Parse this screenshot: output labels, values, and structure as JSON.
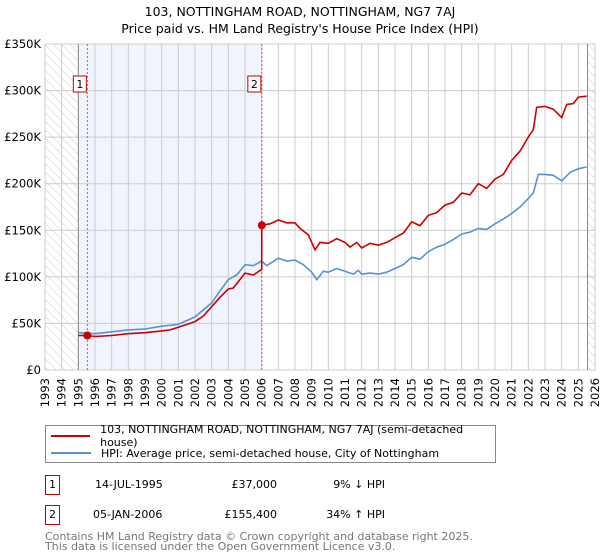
{
  "title": "103, NOTTINGHAM ROAD, NOTTINGHAM, NG7 7AJ",
  "subtitle": "Price paid vs. HM Land Registry's House Price Index (HPI)",
  "chart_data": {
    "type": "line",
    "title": "103, NOTTINGHAM ROAD, NOTTINGHAM, NG7 7AJ",
    "subtitle": "Price paid vs. HM Land Registry's House Price Index (HPI)",
    "xlim": [
      1993,
      2026
    ],
    "ylim": [
      0,
      350000
    ],
    "x_ticks": [
      "1993",
      "1994",
      "1995",
      "1996",
      "1997",
      "1998",
      "1999",
      "2000",
      "2001",
      "2002",
      "2003",
      "2004",
      "2005",
      "2006",
      "2007",
      "2008",
      "2009",
      "2010",
      "2011",
      "2012",
      "2013",
      "2014",
      "2015",
      "2016",
      "2017",
      "2018",
      "2019",
      "2020",
      "2021",
      "2022",
      "2023",
      "2024",
      "2025",
      "2026"
    ],
    "y_ticks": [
      {
        "v": 0,
        "label": "£0"
      },
      {
        "v": 50000,
        "label": "£50K"
      },
      {
        "v": 100000,
        "label": "£100K"
      },
      {
        "v": 150000,
        "label": "£150K"
      },
      {
        "v": 200000,
        "label": "£200K"
      },
      {
        "v": 250000,
        "label": "£250K"
      },
      {
        "v": 300000,
        "label": "£300K"
      },
      {
        "v": 350000,
        "label": "£350K"
      }
    ],
    "grid": true,
    "hatched_ranges": [
      [
        1993,
        1995.0
      ],
      [
        2025.55,
        2026
      ]
    ],
    "shaded_range": [
      1995.0,
      2006.01
    ],
    "series": [
      {
        "name": "103, NOTTINGHAM ROAD, NOTTINGHAM, NG7 7AJ (semi-detached house)",
        "color": "#cc0000",
        "x": [
          1995.0,
          1995.54,
          1996,
          1997,
          1998,
          1999,
          2000,
          2000.5,
          2001,
          2002,
          2002.5,
          2003,
          2003.5,
          2004,
          2004.3,
          2005,
          2005.5,
          2006.0,
          2006.01,
          2006.5,
          2007,
          2007.5,
          2008,
          2008.3,
          2008.8,
          2009.2,
          2009.5,
          2010,
          2010.5,
          2011,
          2011.3,
          2011.7,
          2012,
          2012.5,
          2013,
          2013.5,
          2014,
          2014.5,
          2015,
          2015.5,
          2016,
          2016.5,
          2017,
          2017.5,
          2018,
          2018.5,
          2019,
          2019.5,
          2020,
          2020.5,
          2021,
          2021.5,
          2022,
          2022.3,
          2022.5,
          2023,
          2023.5,
          2024,
          2024.3,
          2024.7,
          2025,
          2025.5
        ],
        "y": [
          37000,
          37000,
          36000,
          37000,
          39000,
          40000,
          42000,
          43000,
          46000,
          52000,
          58000,
          68000,
          78000,
          87000,
          88000,
          104000,
          102000,
          108000,
          155400,
          157000,
          161000,
          158000,
          158000,
          152000,
          145000,
          129000,
          137000,
          136000,
          141000,
          137000,
          132000,
          137000,
          131000,
          136000,
          134000,
          137000,
          142000,
          147000,
          159000,
          155000,
          166000,
          169000,
          177000,
          180000,
          190000,
          188000,
          200000,
          195000,
          205000,
          210000,
          225000,
          235000,
          250000,
          258000,
          282000,
          283000,
          280000,
          271000,
          285000,
          286000,
          293000,
          294000
        ]
      },
      {
        "name": "HPI: Average price, semi-detached house, City of Nottingham",
        "color": "#5b8fd6",
        "x": [
          1995.0,
          1996,
          1997,
          1998,
          1999,
          2000,
          2001,
          2002,
          2003,
          2003.5,
          2004,
          2004.5,
          2005,
          2005.5,
          2006,
          2006.3,
          2007,
          2007.5,
          2008,
          2008.5,
          2009,
          2009.3,
          2009.7,
          2010,
          2010.5,
          2011,
          2011.5,
          2011.8,
          2012,
          2012.5,
          2013,
          2013.5,
          2014,
          2014.5,
          2015,
          2015.5,
          2016,
          2016.5,
          2017,
          2017.5,
          2018,
          2018.5,
          2019,
          2019.5,
          2020,
          2020.5,
          2021,
          2021.5,
          2022,
          2022.3,
          2022.6,
          2023,
          2023.5,
          2024,
          2024.5,
          2025,
          2025.5
        ],
        "y": [
          40000,
          39000,
          41000,
          43000,
          44000,
          47000,
          49000,
          57000,
          72000,
          85000,
          97000,
          102000,
          113000,
          112000,
          117000,
          112000,
          120000,
          117000,
          118000,
          113000,
          105000,
          97000,
          106000,
          105000,
          109000,
          106000,
          103000,
          107000,
          103000,
          104000,
          103000,
          105000,
          109000,
          113000,
          121000,
          119000,
          127000,
          132000,
          135000,
          140000,
          146000,
          148000,
          152000,
          151000,
          157000,
          162000,
          168000,
          175000,
          184000,
          190000,
          210000,
          210000,
          209000,
          203000,
          212000,
          216000,
          218000
        ]
      }
    ],
    "sales": [
      {
        "label": "1",
        "x": 1995.54,
        "y": 37000
      },
      {
        "label": "2",
        "x": 2006.01,
        "y": 155400
      }
    ]
  },
  "legend": {
    "property": "103, NOTTINGHAM ROAD, NOTTINGHAM, NG7 7AJ (semi-detached house)",
    "hpi": "HPI: Average price, semi-detached house, City of Nottingham"
  },
  "sales_table": [
    {
      "num": "1",
      "date": "14-JUL-1995",
      "price": "£37,000",
      "hpi": "9% ↓ HPI"
    },
    {
      "num": "2",
      "date": "05-JAN-2006",
      "price": "£155,400",
      "hpi": "34% ↑ HPI"
    }
  ],
  "footer": {
    "line1": "Contains HM Land Registry data © Crown copyright and database right 2025.",
    "line2": "This data is licensed under the Open Government Licence v3.0."
  }
}
